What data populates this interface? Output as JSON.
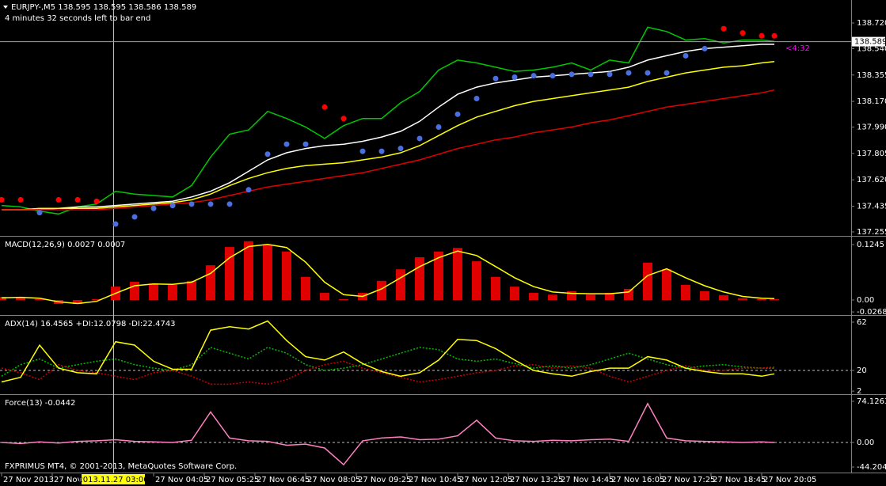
{
  "chart_data": [
    {
      "type": "line",
      "title": "EURJPY-,M5  138.595 138.595 138.586 138.589",
      "subtitle": "4 minutes 32 seconds left to bar end",
      "footer": "FXPRIMUS MT4, © 2001-2013, MetaQuotes Software Corp.",
      "crosshair_label": "2013.11.27 03:00",
      "countdown": "<4:32",
      "last_price": 138.589,
      "x": [
        0,
        6,
        12,
        18,
        24,
        30,
        36,
        42,
        48,
        54,
        60,
        66,
        72,
        78,
        84,
        90,
        96,
        102,
        108,
        114,
        120,
        126,
        132,
        138,
        144,
        150,
        156,
        162,
        168,
        174,
        180,
        186,
        192,
        198,
        204,
        210,
        216,
        222,
        228,
        234,
        240,
        244
      ],
      "xlim": [
        -0.5,
        268.25
      ],
      "xticks": [
        {
          "value": 0,
          "label": "27 Nov 2013"
        },
        {
          "value": 16,
          "label": "27 Nov 0"
        },
        {
          "value": 48,
          "label": "27 Nov 04:05"
        },
        {
          "value": 64,
          "label": "27 Nov 05:25"
        },
        {
          "value": 80,
          "label": "27 Nov 06:45"
        },
        {
          "value": 96,
          "label": "27 Nov 08:05"
        },
        {
          "value": 112,
          "label": "27 Nov 09:25"
        },
        {
          "value": 128,
          "label": "27 Nov 10:45"
        },
        {
          "value": 144,
          "label": "27 Nov 12:05"
        },
        {
          "value": 160,
          "label": "27 Nov 13:25"
        },
        {
          "value": 176,
          "label": "27 Nov 14:45"
        },
        {
          "value": 192,
          "label": "27 Nov 16:05"
        },
        {
          "value": 208,
          "label": "27 Nov 17:25"
        },
        {
          "value": 224,
          "label": "27 Nov 18:45"
        },
        {
          "value": 240,
          "label": "27 Nov 20:05"
        }
      ],
      "ylim": [
        137.227,
        138.881
      ],
      "yticks": [
        {
          "value": 138.72,
          "label": "138.720"
        },
        {
          "value": 138.54,
          "label": "138.540"
        },
        138.355,
        {
          "value": 138.17,
          "label": "138.170"
        },
        {
          "value": 137.99,
          "label": "137.990"
        },
        137.805,
        {
          "value": 137.62,
          "label": "137.620"
        },
        137.435,
        137.255
      ],
      "series": [
        {
          "type": "line",
          "color": "#00c800",
          "values": [
            137.44,
            137.43,
            137.4,
            137.38,
            137.43,
            137.45,
            137.54,
            137.52,
            137.51,
            137.5,
            137.58,
            137.78,
            137.94,
            137.97,
            138.1,
            138.05,
            137.99,
            137.91,
            138.0,
            138.05,
            138.05,
            138.16,
            138.24,
            138.39,
            138.46,
            138.44,
            138.41,
            138.38,
            138.39,
            138.41,
            138.44,
            138.39,
            138.46,
            138.44,
            138.69,
            138.66,
            138.6,
            138.61,
            138.58,
            138.6,
            138.6,
            138.59
          ]
        },
        {
          "type": "line",
          "color": "#ffffff",
          "values": [
            137.41,
            137.41,
            137.41,
            137.42,
            137.43,
            137.43,
            137.44,
            137.45,
            137.46,
            137.47,
            137.5,
            137.54,
            137.6,
            137.68,
            137.76,
            137.81,
            137.84,
            137.86,
            137.87,
            137.89,
            137.92,
            137.96,
            138.03,
            138.13,
            138.22,
            138.27,
            138.3,
            138.32,
            138.34,
            138.35,
            138.36,
            138.37,
            138.38,
            138.41,
            138.46,
            138.49,
            138.52,
            138.54,
            138.55,
            138.56,
            138.57,
            138.57
          ]
        },
        {
          "type": "line",
          "color": "#ffff00",
          "values": [
            137.41,
            137.41,
            137.42,
            137.42,
            137.42,
            137.42,
            137.43,
            137.44,
            137.45,
            137.46,
            137.48,
            137.52,
            137.58,
            137.63,
            137.67,
            137.7,
            137.72,
            137.73,
            137.74,
            137.76,
            137.78,
            137.81,
            137.86,
            137.93,
            138.0,
            138.06,
            138.1,
            138.14,
            138.17,
            138.19,
            138.21,
            138.23,
            138.25,
            138.27,
            138.31,
            138.34,
            138.37,
            138.39,
            138.41,
            138.42,
            138.44,
            138.45
          ]
        },
        {
          "type": "line",
          "color": "#e00000",
          "values": [
            137.41,
            137.41,
            137.41,
            137.41,
            137.41,
            137.41,
            137.42,
            137.43,
            137.44,
            137.45,
            137.46,
            137.48,
            137.51,
            137.54,
            137.57,
            137.59,
            137.61,
            137.63,
            137.65,
            137.67,
            137.7,
            137.73,
            137.76,
            137.8,
            137.84,
            137.87,
            137.9,
            137.92,
            137.95,
            137.97,
            137.99,
            138.02,
            138.04,
            138.07,
            138.1,
            138.13,
            138.15,
            138.17,
            138.19,
            138.21,
            138.23,
            138.25
          ]
        },
        {
          "type": "dot",
          "color": "#4a6fe0",
          "color_above": "#ff0000",
          "values": [
            137.48,
            137.48,
            137.39,
            137.48,
            137.48,
            137.47,
            137.31,
            137.36,
            137.42,
            137.44,
            137.45,
            137.45,
            137.45,
            137.55,
            137.8,
            137.87,
            137.87,
            138.13,
            138.05,
            137.82,
            137.82,
            137.84,
            137.91,
            137.99,
            138.08,
            138.19,
            138.33,
            138.34,
            138.35,
            138.35,
            138.36,
            138.36,
            138.36,
            138.37,
            138.37,
            138.37,
            138.49,
            138.54,
            138.68,
            138.65,
            138.63,
            138.63
          ]
        }
      ]
    },
    {
      "type": "bar",
      "title": "MACD(12,26,9) 0.0027 0.0007",
      "ylim": [
        -0.0302,
        0.1405
      ],
      "yticks": [
        0.1245,
        {
          "value": 0,
          "label": "0.00"
        },
        -0.0268
      ],
      "series": [
        {
          "type": "bar",
          "color": "#e00000",
          "values": [
            0.007,
            0.007,
            0.002,
            -0.009,
            -0.009,
            0.002,
            0.03,
            0.041,
            0.037,
            0.034,
            0.043,
            0.078,
            0.119,
            0.132,
            0.123,
            0.109,
            0.052,
            0.016,
            0.002,
            0.016,
            0.043,
            0.069,
            0.096,
            0.109,
            0.117,
            0.087,
            0.052,
            0.03,
            0.016,
            0.012,
            0.02,
            0.012,
            0.016,
            0.025,
            0.084,
            0.069,
            0.034,
            0.02,
            0.011,
            0.004,
            0.002,
            0.002
          ]
        },
        {
          "type": "line",
          "color": "#ffff00",
          "values": [
            0.005,
            0.006,
            0.004,
            -0.004,
            -0.008,
            -0.003,
            0.015,
            0.032,
            0.036,
            0.035,
            0.04,
            0.06,
            0.095,
            0.12,
            0.125,
            0.118,
            0.085,
            0.04,
            0.012,
            0.008,
            0.025,
            0.05,
            0.075,
            0.095,
            0.11,
            0.1,
            0.075,
            0.05,
            0.03,
            0.018,
            0.015,
            0.014,
            0.014,
            0.018,
            0.055,
            0.07,
            0.05,
            0.032,
            0.018,
            0.008,
            0.004,
            0.003
          ]
        }
      ]
    },
    {
      "type": "line",
      "title": "ADX(14) 16.4565 +DI:12.0798 -DI:22.4743",
      "ylim": [
        0.72,
        66.8
      ],
      "yticks": [
        62,
        20,
        2
      ],
      "levels": [
        20
      ],
      "series": [
        {
          "type": "line",
          "color": "#00c000",
          "dashed": true,
          "values": [
            15,
            25,
            30,
            22,
            25,
            28,
            30,
            25,
            22,
            20,
            25,
            40,
            35,
            30,
            40,
            35,
            25,
            20,
            22,
            25,
            30,
            35,
            40,
            38,
            30,
            28,
            30,
            26,
            22,
            24,
            22,
            25,
            30,
            35,
            30,
            25,
            22,
            24,
            25,
            23,
            22,
            22
          ]
        },
        {
          "type": "line",
          "color": "#d00000",
          "dashed": true,
          "values": [
            22,
            18,
            12,
            25,
            20,
            18,
            15,
            12,
            18,
            20,
            15,
            8,
            8,
            10,
            8,
            12,
            20,
            25,
            28,
            22,
            18,
            14,
            10,
            12,
            15,
            18,
            20,
            24,
            25,
            22,
            24,
            22,
            15,
            10,
            15,
            20,
            24,
            20,
            20,
            22,
            22,
            23
          ]
        },
        {
          "type": "line",
          "color": "#ffff00",
          "values": [
            10,
            14,
            42,
            22,
            18,
            17,
            45,
            42,
            28,
            21,
            21,
            55,
            58,
            56,
            63,
            46,
            32,
            29,
            36,
            26,
            19,
            15,
            18,
            29,
            47,
            46,
            39,
            29,
            20,
            17,
            15,
            19,
            22,
            22,
            32,
            29,
            22,
            19,
            17,
            17,
            15,
            17
          ]
        }
      ]
    },
    {
      "type": "line",
      "title": "Force(13) -0.0442",
      "ylim": [
        -52.74,
        84.1
      ],
      "yticks": [
        74.1263,
        {
          "value": 0,
          "label": "0.00"
        },
        -44.2046
      ],
      "levels": [
        0
      ],
      "series": [
        {
          "type": "line",
          "color": "#ff80c0",
          "values": [
            0,
            -2,
            1,
            -1,
            2,
            3,
            5,
            2,
            1,
            0,
            4,
            55,
            8,
            3,
            2,
            -5,
            -3,
            -10,
            -40,
            3,
            8,
            10,
            5,
            6,
            12,
            40,
            8,
            3,
            2,
            4,
            3,
            5,
            6,
            2,
            70,
            8,
            3,
            2,
            1,
            0,
            1,
            0
          ]
        }
      ]
    }
  ]
}
